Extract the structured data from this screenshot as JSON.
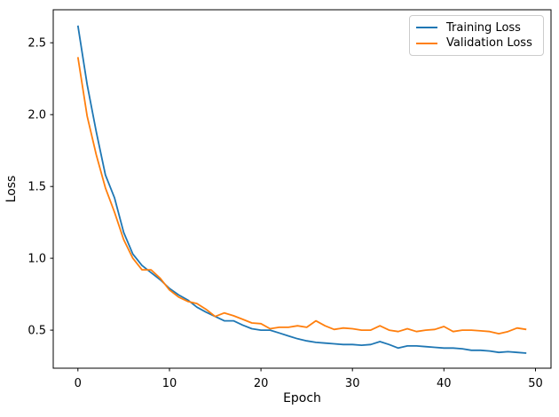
{
  "chart_data": {
    "type": "line",
    "title": "",
    "xlabel": "Epoch",
    "ylabel": "Loss",
    "grid": false,
    "legend_position": "upper right",
    "xlim": [
      -2.7,
      51.7
    ],
    "ylim": [
      0.235,
      2.73
    ],
    "xticks": [
      0,
      10,
      20,
      30,
      40,
      50
    ],
    "xtick_labels": [
      "0",
      "10",
      "20",
      "30",
      "40",
      "50"
    ],
    "yticks": [
      0.5,
      1.0,
      1.5,
      2.0,
      2.5
    ],
    "ytick_labels": [
      "0.5",
      "1.0",
      "1.5",
      "2.0",
      "2.5"
    ],
    "x": [
      0,
      1,
      2,
      3,
      4,
      5,
      6,
      7,
      8,
      9,
      10,
      11,
      12,
      13,
      14,
      15,
      16,
      17,
      18,
      19,
      20,
      21,
      22,
      23,
      24,
      25,
      26,
      27,
      28,
      29,
      30,
      31,
      32,
      33,
      34,
      35,
      36,
      37,
      38,
      39,
      40,
      41,
      42,
      43,
      44,
      45,
      46,
      47,
      48,
      49
    ],
    "series": [
      {
        "name": "Training Loss",
        "color": "#1f77b4",
        "values": [
          2.62,
          2.21,
          1.88,
          1.58,
          1.42,
          1.18,
          1.03,
          0.95,
          0.9,
          0.85,
          0.79,
          0.745,
          0.71,
          0.66,
          0.625,
          0.595,
          0.565,
          0.565,
          0.535,
          0.51,
          0.5,
          0.5,
          0.48,
          0.46,
          0.44,
          0.425,
          0.415,
          0.41,
          0.405,
          0.4,
          0.4,
          0.395,
          0.4,
          0.42,
          0.4,
          0.375,
          0.39,
          0.39,
          0.385,
          0.38,
          0.375,
          0.375,
          0.37,
          0.36,
          0.36,
          0.355,
          0.345,
          0.35,
          0.345,
          0.34
        ]
      },
      {
        "name": "Validation Loss",
        "color": "#ff7f0e",
        "values": [
          2.4,
          1.99,
          1.72,
          1.49,
          1.32,
          1.13,
          1.0,
          0.92,
          0.92,
          0.86,
          0.78,
          0.73,
          0.7,
          0.685,
          0.645,
          0.595,
          0.62,
          0.6,
          0.575,
          0.55,
          0.545,
          0.51,
          0.52,
          0.52,
          0.53,
          0.52,
          0.565,
          0.53,
          0.505,
          0.515,
          0.51,
          0.5,
          0.5,
          0.53,
          0.5,
          0.49,
          0.51,
          0.49,
          0.5,
          0.505,
          0.525,
          0.49,
          0.5,
          0.5,
          0.495,
          0.49,
          0.475,
          0.49,
          0.515,
          0.505
        ]
      }
    ]
  }
}
